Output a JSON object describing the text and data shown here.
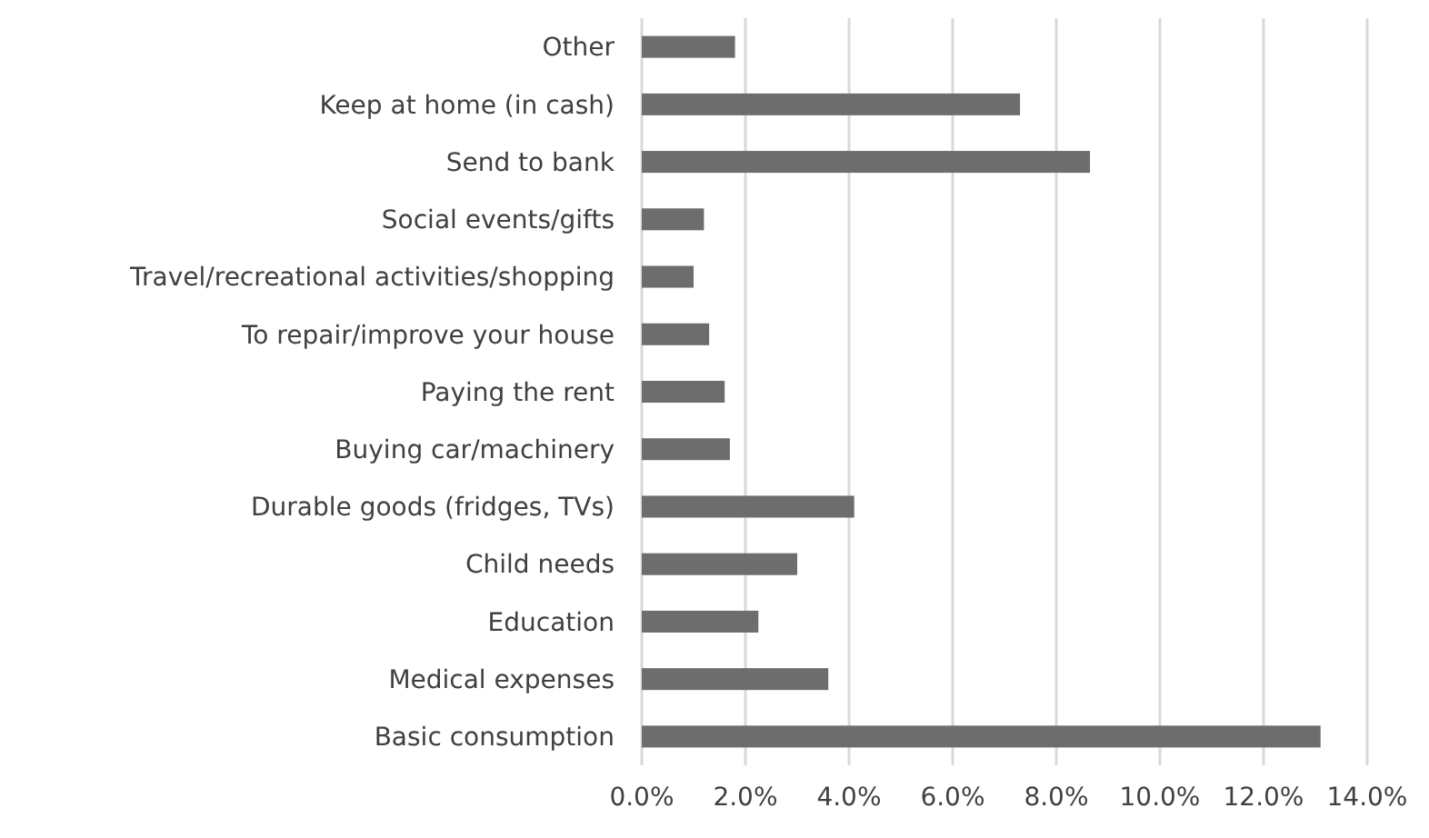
{
  "chart_data": {
    "type": "bar",
    "orientation": "horizontal",
    "categories": [
      "Other",
      "Keep at home (in cash)",
      "Send to bank",
      "Social events/gifts",
      "Travel/recreational activities/shopping",
      "To repair/improve your house",
      "Paying the rent",
      "Buying car/machinery",
      "Durable goods (fridges, TVs)",
      "Child needs",
      "Education",
      "Medical expenses",
      "Basic consumption"
    ],
    "values": [
      1.8,
      7.3,
      8.65,
      1.2,
      1.0,
      1.3,
      1.6,
      1.7,
      4.1,
      3.0,
      2.25,
      3.6,
      13.1
    ],
    "color": "#6d6d6d",
    "xlim": [
      0,
      14
    ],
    "xticks": [
      {
        "value": 0,
        "label": "0.0%"
      },
      {
        "value": 2,
        "label": "2.0%"
      },
      {
        "value": 4,
        "label": "4.0%"
      },
      {
        "value": 6,
        "label": "6.0%"
      },
      {
        "value": 8,
        "label": "8.0%"
      },
      {
        "value": 10,
        "label": "10.0%"
      },
      {
        "value": 12,
        "label": "12.0%"
      },
      {
        "value": 14,
        "label": "14.0%"
      }
    ],
    "grid": "x"
  }
}
